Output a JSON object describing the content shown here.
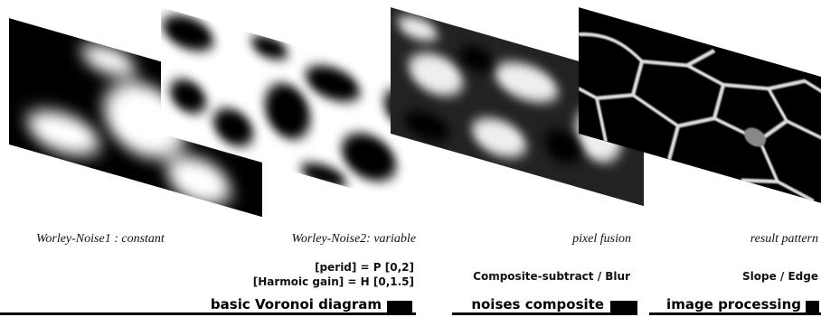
{
  "panels": [
    {
      "label": "Worley-Noise1 : constant"
    },
    {
      "label": "Worley-Noise2: variable"
    },
    {
      "label": "pixel fusion"
    },
    {
      "label": "result pattern"
    }
  ],
  "notes": {
    "period": "[perid] = P [0,2]",
    "gain": "[Harmoic gain] = H [0,1.5]",
    "composite": "Composite-subtract / Blur",
    "edge": "Slope / Edge"
  },
  "sections": [
    "basic Voronoi diagram",
    "noises composite",
    "image processing"
  ]
}
